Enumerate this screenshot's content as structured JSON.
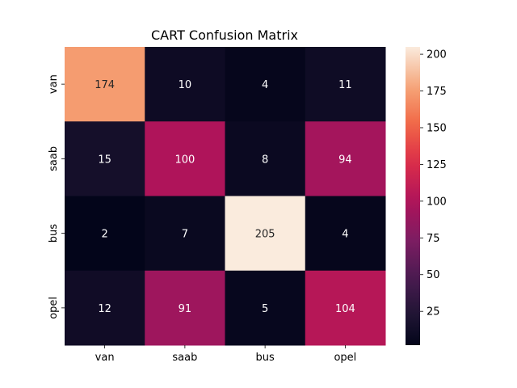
{
  "chart_data": {
    "type": "heatmap",
    "title": "CART Confusion Matrix",
    "xlabel": "",
    "ylabel": "",
    "x_categories": [
      "van",
      "saab",
      "bus",
      "opel"
    ],
    "y_categories": [
      "van",
      "saab",
      "bus",
      "opel"
    ],
    "values": [
      [
        174,
        10,
        4,
        11
      ],
      [
        15,
        100,
        8,
        94
      ],
      [
        2,
        7,
        205,
        4
      ],
      [
        12,
        91,
        5,
        104
      ]
    ],
    "colorbar": {
      "min": 2,
      "max": 205,
      "ticks": [
        25,
        50,
        75,
        100,
        125,
        150,
        175,
        200
      ],
      "colormap": "rocket"
    },
    "colors": {
      "cell_text_light": "#ffffff",
      "cell_text_dark": "#262626"
    }
  }
}
